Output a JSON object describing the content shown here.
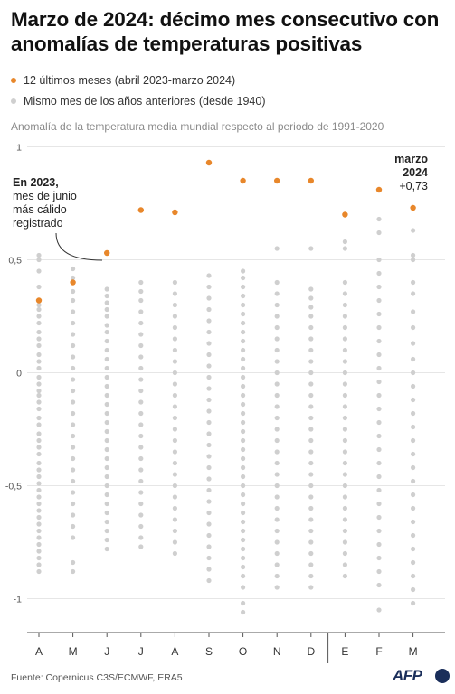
{
  "title": "Marzo de 2024: décimo mes consecutivo con anomalías de temperaturas positivas",
  "legend": [
    {
      "label": "12 últimos meses (abril 2023-marzo 2024)",
      "color": "#e8872b"
    },
    {
      "label": "Mismo mes de los años anteriores (desde 1940)",
      "color": "#cfcfcf"
    }
  ],
  "subtitle": "Anomalía de la temperatura media mundial respecto al periodo de 1991-2020",
  "source": "Fuente: Copernicus C3S/ECMWF, ERA5",
  "logo": "AFP",
  "annotations": {
    "june_title": "En 2023,",
    "june_lines": [
      "mes de junio",
      "más cálido",
      "registrado"
    ],
    "march_title_1": "marzo",
    "march_title_2": "2024",
    "march_value": "+0,73"
  },
  "chart_data": {
    "type": "scatter",
    "ylim": [
      -1.15,
      1.05
    ],
    "yticks": [
      1,
      0.5,
      0,
      -0.5,
      -1
    ],
    "ytick_labels": [
      "1",
      "0,5",
      "0",
      "-0,5",
      "-1"
    ],
    "categories": [
      "A",
      "M",
      "J",
      "J",
      "A",
      "S",
      "O",
      "N",
      "D",
      "E",
      "F",
      "M"
    ],
    "series": [
      {
        "name": "12 últimos meses (abril 2023-marzo 2024)",
        "color": "#e8872b",
        "values": [
          0.32,
          0.4,
          0.53,
          0.72,
          0.71,
          0.93,
          0.85,
          0.85,
          0.85,
          0.7,
          0.81,
          0.73
        ]
      },
      {
        "name": "Mismo mes de los años anteriores (desde 1940)",
        "color": "#cfcfcf",
        "points": [
          [
            0,
            [
              0.52,
              0.5,
              0.45,
              0.38,
              0.3,
              0.28,
              0.25,
              0.22,
              0.18,
              0.15,
              0.12,
              0.08,
              0.05,
              0.02,
              -0.02,
              -0.05,
              -0.08,
              -0.1,
              -0.13,
              -0.16,
              -0.2,
              -0.23,
              -0.27,
              -0.3,
              -0.33,
              -0.36,
              -0.4,
              -0.43,
              -0.46,
              -0.49,
              -0.52,
              -0.55,
              -0.58,
              -0.61,
              -0.64,
              -0.67,
              -0.7,
              -0.73,
              -0.76,
              -0.79,
              -0.82,
              -0.85,
              -0.88
            ]
          ],
          [
            1,
            [
              0.46,
              0.42,
              0.36,
              0.32,
              0.27,
              0.22,
              0.17,
              0.12,
              0.07,
              0.02,
              -0.03,
              -0.08,
              -0.13,
              -0.18,
              -0.23,
              -0.28,
              -0.33,
              -0.38,
              -0.43,
              -0.48,
              -0.53,
              -0.58,
              -0.63,
              -0.68,
              -0.73,
              -0.84,
              -0.88
            ]
          ],
          [
            2,
            [
              0.37,
              0.34,
              0.31,
              0.28,
              0.25,
              0.21,
              0.18,
              0.14,
              0.1,
              0.06,
              0.02,
              -0.02,
              -0.06,
              -0.1,
              -0.14,
              -0.18,
              -0.22,
              -0.26,
              -0.3,
              -0.34,
              -0.38,
              -0.42,
              -0.46,
              -0.5,
              -0.54,
              -0.58,
              -0.62,
              -0.66,
              -0.7,
              -0.74,
              -0.78
            ]
          ],
          [
            3,
            [
              0.4,
              0.36,
              0.32,
              0.27,
              0.22,
              0.17,
              0.12,
              0.07,
              0.02,
              -0.03,
              -0.08,
              -0.13,
              -0.18,
              -0.23,
              -0.28,
              -0.33,
              -0.38,
              -0.43,
              -0.48,
              -0.53,
              -0.58,
              -0.63,
              -0.68,
              -0.73,
              -0.77
            ]
          ],
          [
            4,
            [
              0.4,
              0.35,
              0.3,
              0.25,
              0.2,
              0.15,
              0.1,
              0.05,
              0.0,
              -0.05,
              -0.1,
              -0.15,
              -0.2,
              -0.25,
              -0.3,
              -0.35,
              -0.4,
              -0.45,
              -0.5,
              -0.55,
              -0.6,
              -0.65,
              -0.7,
              -0.75,
              -0.8
            ]
          ],
          [
            5,
            [
              0.43,
              0.38,
              0.33,
              0.28,
              0.23,
              0.18,
              0.13,
              0.08,
              0.03,
              -0.02,
              -0.07,
              -0.12,
              -0.17,
              -0.22,
              -0.27,
              -0.32,
              -0.37,
              -0.42,
              -0.47,
              -0.52,
              -0.57,
              -0.62,
              -0.67,
              -0.72,
              -0.77,
              -0.82,
              -0.87,
              -0.92
            ]
          ],
          [
            6,
            [
              0.45,
              0.42,
              0.38,
              0.34,
              0.3,
              0.26,
              0.22,
              0.18,
              0.14,
              0.1,
              0.06,
              0.02,
              -0.02,
              -0.06,
              -0.1,
              -0.14,
              -0.18,
              -0.22,
              -0.26,
              -0.3,
              -0.34,
              -0.38,
              -0.42,
              -0.46,
              -0.5,
              -0.54,
              -0.58,
              -0.62,
              -0.66,
              -0.7,
              -0.74,
              -0.78,
              -0.82,
              -0.86,
              -0.9,
              -0.95,
              -1.02,
              -1.06
            ]
          ],
          [
            7,
            [
              0.55,
              0.4,
              0.35,
              0.3,
              0.25,
              0.2,
              0.15,
              0.1,
              0.05,
              0.0,
              -0.05,
              -0.1,
              -0.15,
              -0.2,
              -0.25,
              -0.3,
              -0.35,
              -0.4,
              -0.45,
              -0.5,
              -0.55,
              -0.6,
              -0.65,
              -0.7,
              -0.75,
              -0.8,
              -0.85,
              -0.9,
              -0.95
            ]
          ],
          [
            8,
            [
              0.55,
              0.37,
              0.33,
              0.29,
              0.25,
              0.2,
              0.15,
              0.1,
              0.05,
              0.0,
              -0.05,
              -0.1,
              -0.15,
              -0.2,
              -0.25,
              -0.3,
              -0.35,
              -0.4,
              -0.45,
              -0.5,
              -0.55,
              -0.6,
              -0.65,
              -0.7,
              -0.75,
              -0.8,
              -0.85,
              -0.9,
              -0.95
            ]
          ],
          [
            9,
            [
              0.58,
              0.55,
              0.4,
              0.35,
              0.3,
              0.25,
              0.2,
              0.15,
              0.1,
              0.05,
              0.0,
              -0.05,
              -0.1,
              -0.15,
              -0.2,
              -0.25,
              -0.3,
              -0.35,
              -0.4,
              -0.45,
              -0.5,
              -0.55,
              -0.6,
              -0.65,
              -0.7,
              -0.75,
              -0.8,
              -0.85,
              -0.9
            ]
          ],
          [
            10,
            [
              0.68,
              0.62,
              0.5,
              0.44,
              0.38,
              0.32,
              0.26,
              0.2,
              0.14,
              0.08,
              0.02,
              -0.04,
              -0.1,
              -0.16,
              -0.22,
              -0.28,
              -0.34,
              -0.4,
              -0.46,
              -0.52,
              -0.58,
              -0.64,
              -0.7,
              -0.76,
              -0.82,
              -0.88,
              -0.94,
              -1.05
            ]
          ],
          [
            11,
            [
              0.63,
              0.52,
              0.5,
              0.4,
              0.35,
              0.27,
              0.2,
              0.13,
              0.06,
              0.0,
              -0.06,
              -0.12,
              -0.18,
              -0.24,
              -0.3,
              -0.36,
              -0.42,
              -0.48,
              -0.54,
              -0.6,
              -0.66,
              -0.72,
              -0.78,
              -0.84,
              -0.9,
              -0.96,
              -1.02
            ]
          ]
        ]
      }
    ]
  }
}
